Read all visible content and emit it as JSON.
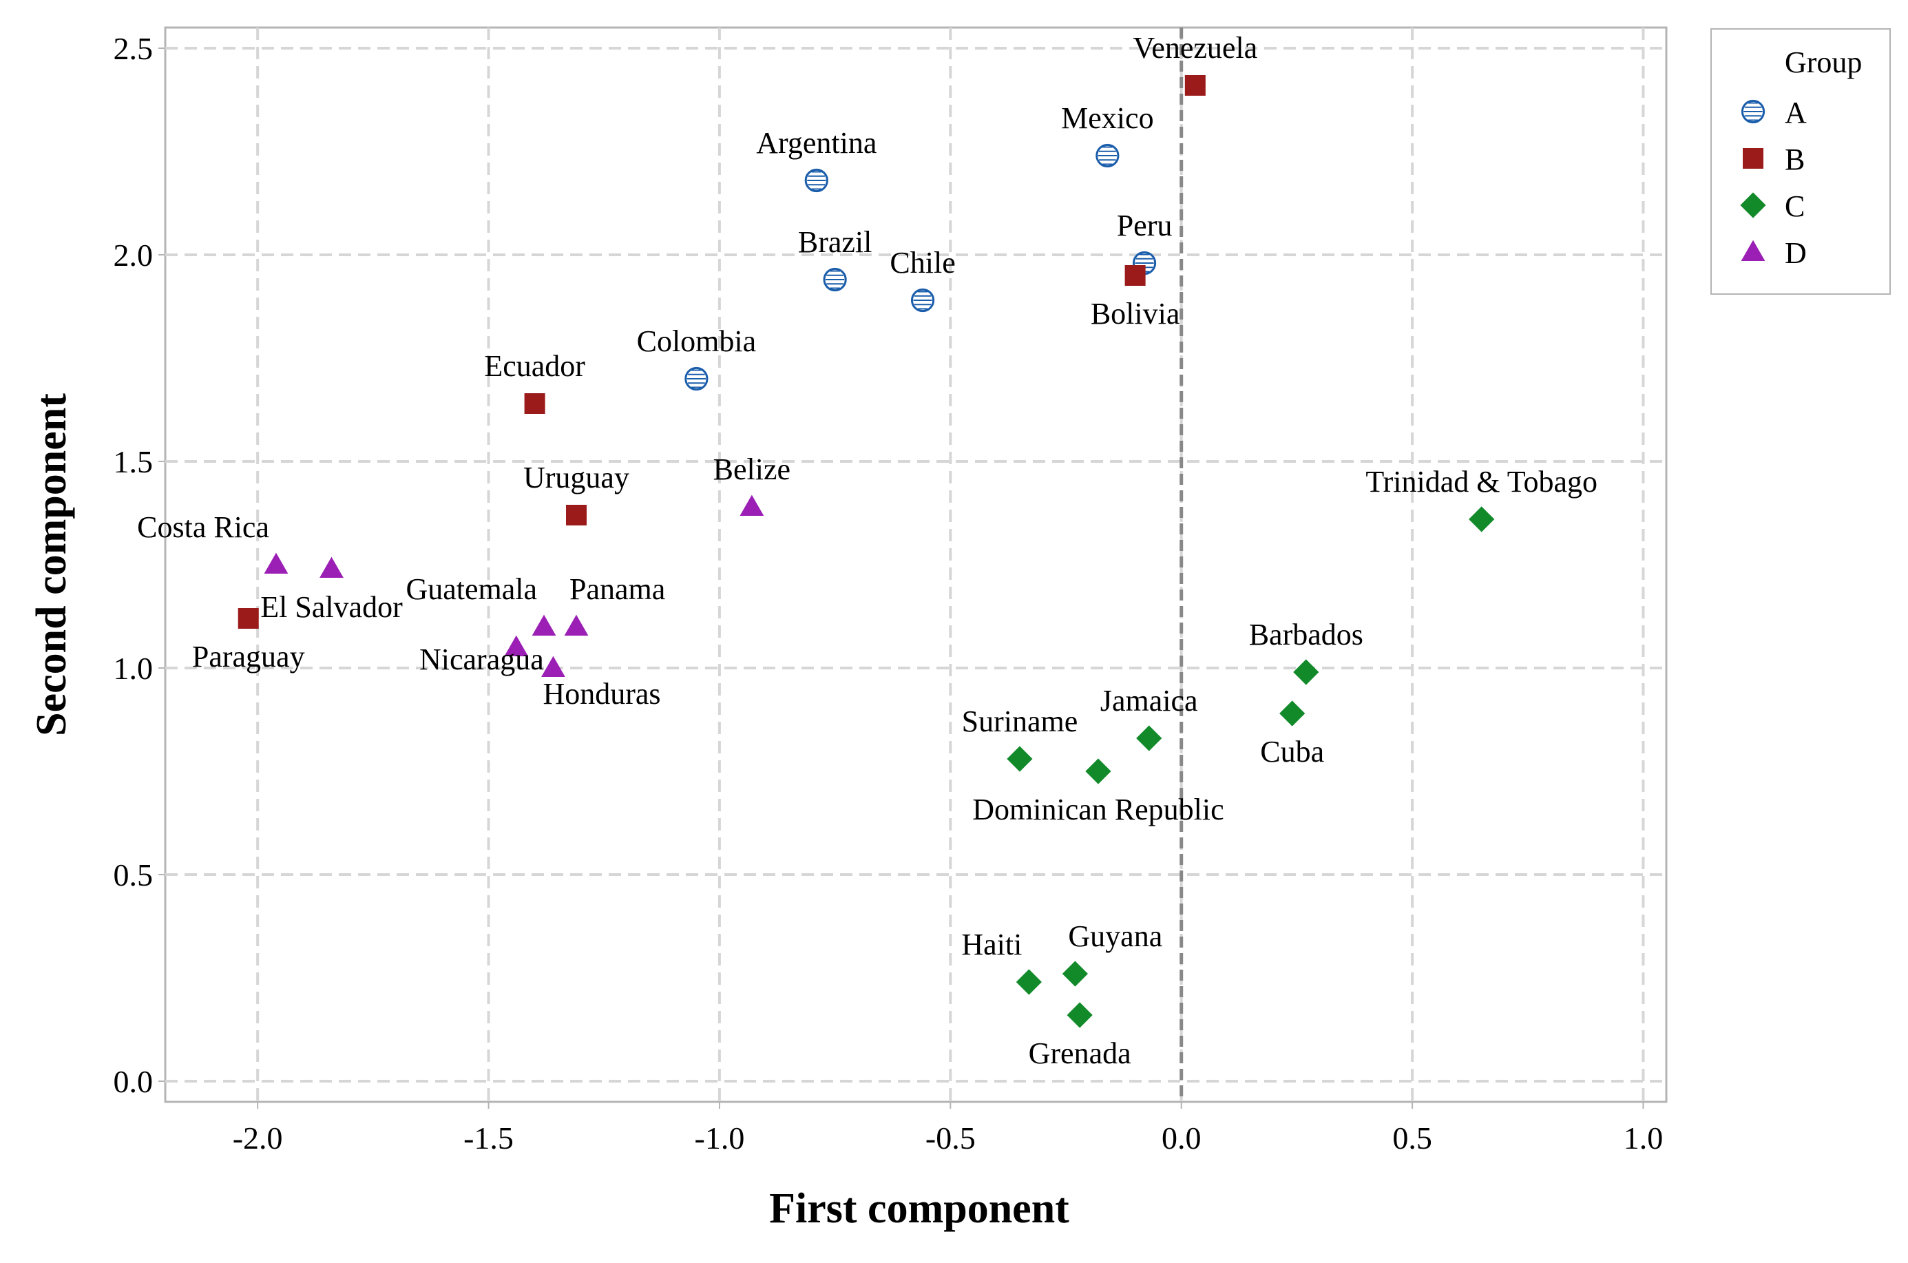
{
  "chart_data": {
    "type": "scatter",
    "title": "",
    "xlabel": "First component",
    "ylabel": "Second component",
    "xlim": [
      -2.2,
      1.05
    ],
    "ylim": [
      -0.05,
      2.55
    ],
    "xticks": [
      -2.0,
      -1.5,
      -1.0,
      -0.5,
      0.0,
      0.5,
      1.0
    ],
    "yticks": [
      0.0,
      0.5,
      1.0,
      1.5,
      2.0,
      2.5
    ],
    "xtick_labels": [
      "-2.0",
      "-1.5",
      "-1.0",
      "-0.5",
      "0.0",
      "0.5",
      "1.0"
    ],
    "ytick_labels": [
      "0.0",
      "0.5",
      "1.0",
      "1.5",
      "2.0",
      "2.5"
    ],
    "grid": true,
    "reference_line_x": 0.0,
    "legend": {
      "title": "Group",
      "position": "top-right-outside",
      "entries": [
        {
          "group": "A",
          "label": "A",
          "color": "#1a5dab",
          "marker": "circle"
        },
        {
          "group": "B",
          "label": "B",
          "color": "#9b1b1b",
          "marker": "square"
        },
        {
          "group": "C",
          "label": "C",
          "color": "#128a2a",
          "marker": "diamond"
        },
        {
          "group": "D",
          "label": "D",
          "color": "#9b1fb5",
          "marker": "triangle"
        }
      ]
    },
    "points": [
      {
        "label": "Argentina",
        "group": "A",
        "x": -0.79,
        "y": 2.18,
        "label_pos": "above"
      },
      {
        "label": "Mexico",
        "group": "A",
        "x": -0.16,
        "y": 2.24,
        "label_pos": "above"
      },
      {
        "label": "Brazil",
        "group": "A",
        "x": -0.75,
        "y": 1.94,
        "label_pos": "above"
      },
      {
        "label": "Chile",
        "group": "A",
        "x": -0.56,
        "y": 1.89,
        "label_pos": "above"
      },
      {
        "label": "Peru",
        "group": "A",
        "x": -0.08,
        "y": 1.98,
        "label_pos": "above"
      },
      {
        "label": "Colombia",
        "group": "A",
        "x": -1.05,
        "y": 1.7,
        "label_pos": "above"
      },
      {
        "label": "Venezuela",
        "group": "B",
        "x": 0.03,
        "y": 2.41,
        "label_pos": "above"
      },
      {
        "label": "Bolivia",
        "group": "B",
        "x": -0.1,
        "y": 1.95,
        "label_pos": "below"
      },
      {
        "label": "Ecuador",
        "group": "B",
        "x": -1.4,
        "y": 1.64,
        "label_pos": "above"
      },
      {
        "label": "Uruguay",
        "group": "B",
        "x": -1.31,
        "y": 1.37,
        "label_pos": "above"
      },
      {
        "label": "Paraguay",
        "group": "B",
        "x": -2.02,
        "y": 1.12,
        "label_pos": "below"
      },
      {
        "label": "Trinidad & Tobago",
        "group": "C",
        "x": 0.65,
        "y": 1.36,
        "label_pos": "above"
      },
      {
        "label": "Barbados",
        "group": "C",
        "x": 0.27,
        "y": 0.99,
        "label_pos": "above"
      },
      {
        "label": "Cuba",
        "group": "C",
        "x": 0.24,
        "y": 0.89,
        "label_pos": "below"
      },
      {
        "label": "Jamaica",
        "group": "C",
        "x": -0.07,
        "y": 0.83,
        "label_pos": "above"
      },
      {
        "label": "Suriname",
        "group": "C",
        "x": -0.35,
        "y": 0.78,
        "label_pos": "above"
      },
      {
        "label": "Dominican Republic",
        "group": "C",
        "x": -0.18,
        "y": 0.75,
        "label_pos": "below"
      },
      {
        "label": "Haiti",
        "group": "C",
        "x": -0.33,
        "y": 0.24,
        "label_pos": "above-left"
      },
      {
        "label": "Guyana",
        "group": "C",
        "x": -0.23,
        "y": 0.26,
        "label_pos": "above-right"
      },
      {
        "label": "Grenada",
        "group": "C",
        "x": -0.22,
        "y": 0.16,
        "label_pos": "below"
      },
      {
        "label": "Belize",
        "group": "D",
        "x": -0.93,
        "y": 1.39,
        "label_pos": "above"
      },
      {
        "label": "Costa Rica",
        "group": "D",
        "x": -1.96,
        "y": 1.25,
        "label_pos": "above-left"
      },
      {
        "label": "El Salvador",
        "group": "D",
        "x": -1.84,
        "y": 1.24,
        "label_pos": "below"
      },
      {
        "label": "Guatemala",
        "group": "D",
        "x": -1.38,
        "y": 1.1,
        "label_pos": "above-left"
      },
      {
        "label": "Panama",
        "group": "D",
        "x": -1.31,
        "y": 1.1,
        "label_pos": "above-right"
      },
      {
        "label": "Nicaragua",
        "group": "D",
        "x": -1.44,
        "y": 1.05,
        "label_pos": "left"
      },
      {
        "label": "Honduras",
        "group": "D",
        "x": -1.36,
        "y": 1.0,
        "label_pos": "below-right"
      }
    ]
  }
}
